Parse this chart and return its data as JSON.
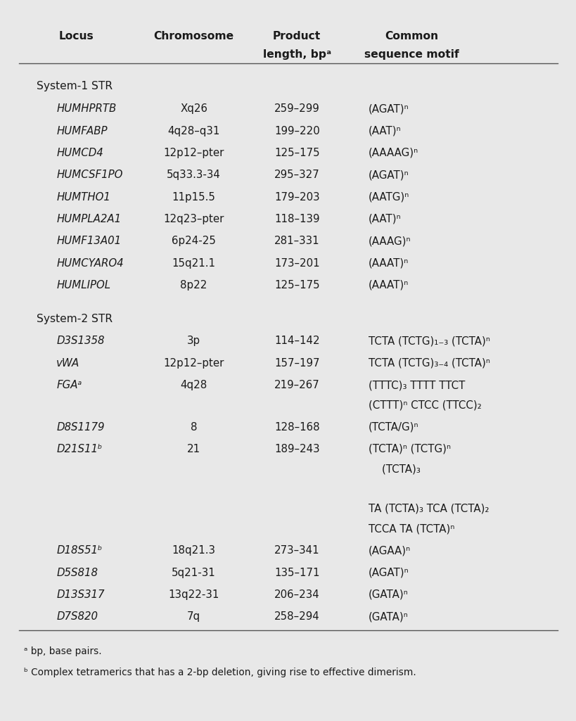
{
  "bg_color": "#e8e8e8",
  "text_color": "#1a1a1a",
  "fig_width": 8.2,
  "fig_height": 10.25,
  "col_x": {
    "col1": 0.07,
    "col2": 0.295,
    "col3": 0.495,
    "col4": 0.635
  },
  "footnotes": [
    "ᵃ bp, base pairs.",
    "ᵇ Complex tetramerics that has a 2-bp deletion, giving rise to effective dimerism."
  ],
  "rows": [
    {
      "type": "section",
      "text": "System-1 STR"
    },
    {
      "type": "data",
      "locus": "HUMHPRTB",
      "chrom": "Xq26",
      "product": "259–299",
      "motif_lines": [
        "(AGAT)ⁿ"
      ]
    },
    {
      "type": "data",
      "locus": "HUMFABP",
      "chrom": "4q28–q31",
      "product": "199–220",
      "motif_lines": [
        "(AAT)ⁿ"
      ]
    },
    {
      "type": "data",
      "locus": "HUMCD4",
      "chrom": "12p12–pter",
      "product": "125–175",
      "motif_lines": [
        "(AAAAG)ⁿ"
      ]
    },
    {
      "type": "data",
      "locus": "HUMCSF1PO",
      "chrom": "5q33.3-34",
      "product": "295–327",
      "motif_lines": [
        "(AGAT)ⁿ"
      ]
    },
    {
      "type": "data",
      "locus": "HUMTHO1",
      "chrom": "11p15.5",
      "product": "179–203",
      "motif_lines": [
        "(AATG)ⁿ"
      ]
    },
    {
      "type": "data",
      "locus": "HUMPLA2A1",
      "chrom": "12q23–pter",
      "product": "118–139",
      "motif_lines": [
        "(AAT)ⁿ"
      ]
    },
    {
      "type": "data",
      "locus": "HUMF13A01",
      "chrom": "6p24-25",
      "product": "281–331",
      "motif_lines": [
        "(AAAG)ⁿ"
      ]
    },
    {
      "type": "data",
      "locus": "HUMCYARO4",
      "chrom": "15q21.1",
      "product": "173–201",
      "motif_lines": [
        "(AAAT)ⁿ"
      ]
    },
    {
      "type": "data",
      "locus": "HUMLIPOL",
      "chrom": "8p22",
      "product": "125–175",
      "motif_lines": [
        "(AAAT)ⁿ"
      ]
    },
    {
      "type": "section",
      "text": "System-2 STR"
    },
    {
      "type": "data",
      "locus": "D3S1358",
      "chrom": "3p",
      "product": "114–142",
      "motif_lines": [
        "TCTA (TCTG)₁₋₃ (TCTA)ⁿ"
      ]
    },
    {
      "type": "data",
      "locus": "vWA",
      "chrom": "12p12–pter",
      "product": "157–197",
      "motif_lines": [
        "TCTA (TCTG)₃₋₄ (TCTA)ⁿ"
      ]
    },
    {
      "type": "data",
      "locus": "FGAᵃ",
      "chrom": "4q28",
      "product": "219–267",
      "motif_lines": [
        "(TTTC)₃ TTTT TTCT",
        "(CTTT)ⁿ CTCC (TTCC)₂"
      ]
    },
    {
      "type": "data",
      "locus": "D8S1179",
      "chrom": "8",
      "product": "128–168",
      "motif_lines": [
        "(TCTA/G)ⁿ"
      ]
    },
    {
      "type": "data",
      "locus": "D21S11ᵇ",
      "chrom": "21",
      "product": "189–243",
      "motif_lines": [
        "(TCTA)ⁿ (TCTG)ⁿ",
        "    (TCTA)₃",
        "",
        "TA (TCTA)₃ TCA (TCTA)₂",
        "TCCA TA (TCTA)ⁿ"
      ]
    },
    {
      "type": "data",
      "locus": "D18S51ᵇ",
      "chrom": "18q21.3",
      "product": "273–341",
      "motif_lines": [
        "(AGAA)ⁿ"
      ]
    },
    {
      "type": "data",
      "locus": "D5S818",
      "chrom": "5q21-31",
      "product": "135–171",
      "motif_lines": [
        "(AGAT)ⁿ"
      ]
    },
    {
      "type": "data",
      "locus": "D13S317",
      "chrom": "13q22-31",
      "product": "206–234",
      "motif_lines": [
        "(GATA)ⁿ"
      ]
    },
    {
      "type": "data",
      "locus": "D7S820",
      "chrom": "7q",
      "product": "258–294",
      "motif_lines": [
        "(GATA)ⁿ"
      ]
    }
  ]
}
